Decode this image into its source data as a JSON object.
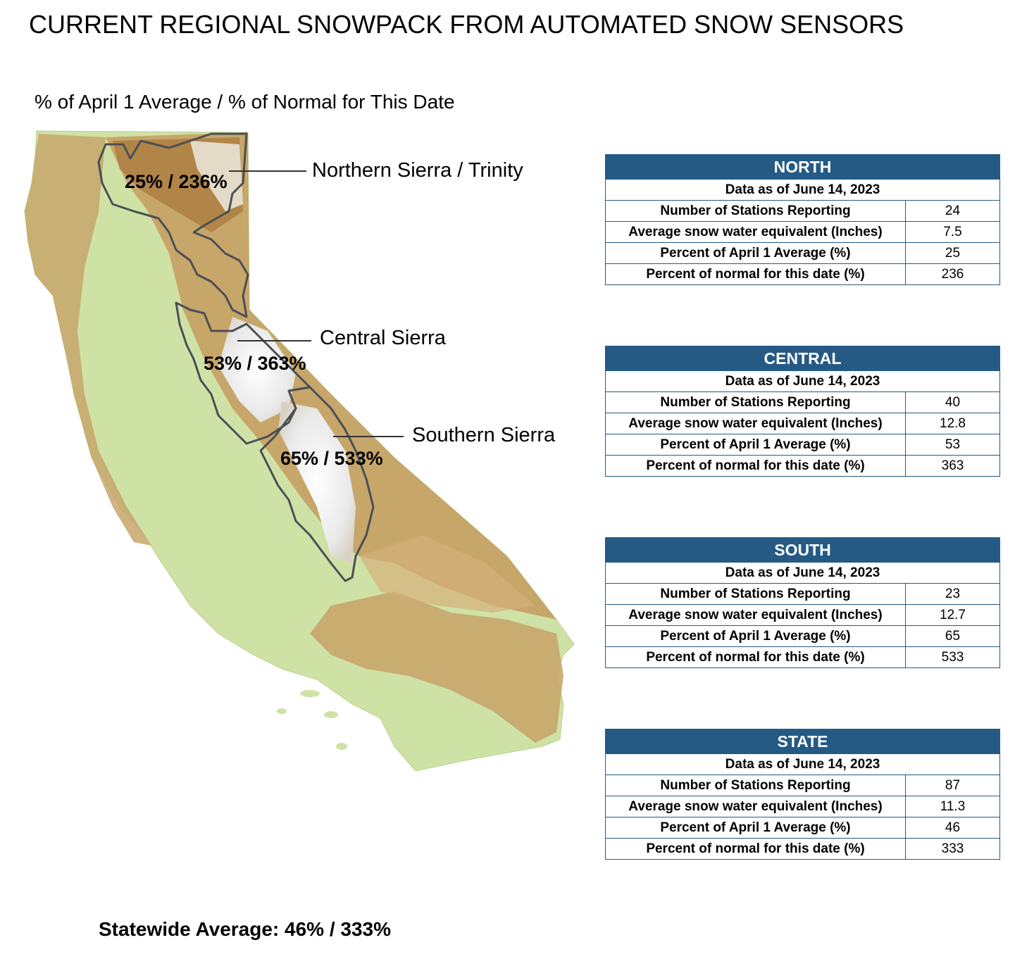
{
  "title": "CURRENT REGIONAL SNOWPACK FROM AUTOMATED SNOW SENSORS",
  "subtitle": "% of April 1 Average / % of Normal for This Date",
  "regions": [
    {
      "name": "Northern Sierra / Trinity",
      "pct_label": "25% / 236%"
    },
    {
      "name": "Central Sierra",
      "pct_label": "53% / 363%"
    },
    {
      "name": "Southern Sierra",
      "pct_label": "65% / 533%"
    }
  ],
  "statewide_label": "Statewide Average: 46% / 333%",
  "row_labels": {
    "stations": "Number of Stations Reporting",
    "swe": "Average snow water equivalent (Inches)",
    "april1": "Percent of April 1 Average (%)",
    "normal": "Percent of normal for this date (%)"
  },
  "tables": [
    {
      "header": "NORTH",
      "date": "Data as of June 14, 2023",
      "stations": "24",
      "swe": "7.5",
      "april1": "25",
      "normal": "236"
    },
    {
      "header": "CENTRAL",
      "date": "Data as of June 14, 2023",
      "stations": "40",
      "swe": "12.8",
      "april1": "53",
      "normal": "363"
    },
    {
      "header": "SOUTH",
      "date": "Data as of June 14, 2023",
      "stations": "23",
      "swe": "12.7",
      "april1": "65",
      "normal": "533"
    },
    {
      "header": "STATE",
      "date": "Data as of June 14, 2023",
      "stations": "87",
      "swe": "11.3",
      "april1": "46",
      "normal": "333"
    }
  ],
  "colors": {
    "table_header": "#255a85",
    "valley": "#cfe2a5",
    "foothill": "#c7a66a",
    "mountain": "#a9793e",
    "snow": "#f2f2f2",
    "region_outline": "#4a4f55"
  }
}
